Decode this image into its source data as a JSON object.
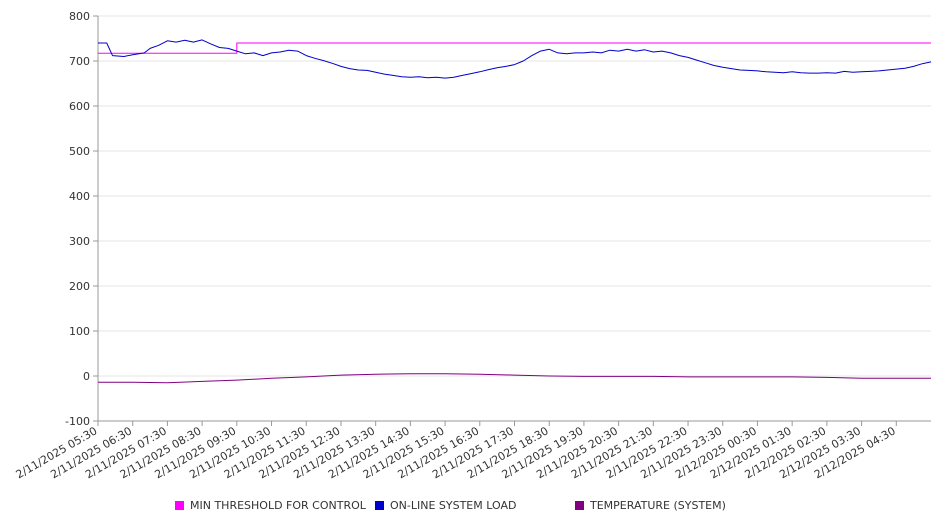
{
  "chart_data": {
    "type": "line",
    "ylim": [
      -100,
      800
    ],
    "yticks": [
      -100,
      0,
      100,
      200,
      300,
      400,
      500,
      600,
      700,
      800
    ],
    "grid": "horizontal",
    "legend_position": "bottom",
    "x_tick_labels": [
      "2/11/2025 05:30",
      "2/11/2025 06:30",
      "2/11/2025 07:30",
      "2/11/2025 08:30",
      "2/11/2025 09:30",
      "2/11/2025 10:30",
      "2/11/2025 11:30",
      "2/11/2025 12:30",
      "2/11/2025 13:30",
      "2/11/2025 14:30",
      "2/11/2025 15:30",
      "2/11/2025 16:30",
      "2/11/2025 17:30",
      "2/11/2025 18:30",
      "2/11/2025 19:30",
      "2/11/2025 20:30",
      "2/11/2025 21:30",
      "2/11/2025 22:30",
      "2/11/2025 23:30",
      "2/12/2025 00:30",
      "2/12/2025 01:30",
      "2/12/2025 02:30",
      "2/12/2025 03:30",
      "2/12/2025 04:30"
    ],
    "x_range": [
      "2/11/2025 05:30",
      "2/12/2025 05:30"
    ],
    "series": [
      {
        "name": "MIN THRESHOLD FOR CONTROL",
        "color": "#ff00ff",
        "points": [
          [
            "2/11/2025 05:30",
            717
          ],
          [
            "2/11/2025 09:30",
            717
          ],
          [
            "2/11/2025 09:30",
            740
          ],
          [
            "2/12/2025 05:30",
            740
          ]
        ]
      },
      {
        "name": "ON-LINE SYSTEM LOAD",
        "color": "#0000cc",
        "points": [
          [
            "2/11/2025 05:30",
            740
          ],
          [
            "2/11/2025 05:45",
            740
          ],
          [
            "2/11/2025 05:55",
            712
          ],
          [
            "2/11/2025 06:15",
            710
          ],
          [
            "2/11/2025 06:30",
            714
          ],
          [
            "2/11/2025 06:50",
            718
          ],
          [
            "2/11/2025 07:00",
            728
          ],
          [
            "2/11/2025 07:15",
            735
          ],
          [
            "2/11/2025 07:30",
            745
          ],
          [
            "2/11/2025 07:45",
            742
          ],
          [
            "2/11/2025 08:00",
            746
          ],
          [
            "2/11/2025 08:15",
            742
          ],
          [
            "2/11/2025 08:30",
            747
          ],
          [
            "2/11/2025 08:45",
            738
          ],
          [
            "2/11/2025 09:00",
            730
          ],
          [
            "2/11/2025 09:15",
            728
          ],
          [
            "2/11/2025 09:30",
            722
          ],
          [
            "2/11/2025 09:45",
            716
          ],
          [
            "2/11/2025 10:00",
            718
          ],
          [
            "2/11/2025 10:15",
            712
          ],
          [
            "2/11/2025 10:30",
            718
          ],
          [
            "2/11/2025 10:45",
            720
          ],
          [
            "2/11/2025 11:00",
            724
          ],
          [
            "2/11/2025 11:15",
            722
          ],
          [
            "2/11/2025 11:30",
            712
          ],
          [
            "2/11/2025 11:45",
            706
          ],
          [
            "2/11/2025 12:00",
            701
          ],
          [
            "2/11/2025 12:15",
            695
          ],
          [
            "2/11/2025 12:30",
            688
          ],
          [
            "2/11/2025 12:45",
            683
          ],
          [
            "2/11/2025 13:00",
            680
          ],
          [
            "2/11/2025 13:15",
            679
          ],
          [
            "2/11/2025 13:30",
            675
          ],
          [
            "2/11/2025 13:45",
            671
          ],
          [
            "2/11/2025 14:00",
            668
          ],
          [
            "2/11/2025 14:15",
            665
          ],
          [
            "2/11/2025 14:30",
            664
          ],
          [
            "2/11/2025 14:45",
            665
          ],
          [
            "2/11/2025 15:00",
            663
          ],
          [
            "2/11/2025 15:15",
            664
          ],
          [
            "2/11/2025 15:30",
            662
          ],
          [
            "2/11/2025 15:45",
            664
          ],
          [
            "2/11/2025 16:00",
            668
          ],
          [
            "2/11/2025 16:15",
            672
          ],
          [
            "2/11/2025 16:30",
            676
          ],
          [
            "2/11/2025 16:45",
            681
          ],
          [
            "2/11/2025 17:00",
            685
          ],
          [
            "2/11/2025 17:15",
            688
          ],
          [
            "2/11/2025 17:30",
            692
          ],
          [
            "2/11/2025 17:45",
            700
          ],
          [
            "2/11/2025 18:00",
            712
          ],
          [
            "2/11/2025 18:15",
            722
          ],
          [
            "2/11/2025 18:30",
            726
          ],
          [
            "2/11/2025 18:45",
            718
          ],
          [
            "2/11/2025 19:00",
            716
          ],
          [
            "2/11/2025 19:15",
            718
          ],
          [
            "2/11/2025 19:30",
            718
          ],
          [
            "2/11/2025 19:45",
            720
          ],
          [
            "2/11/2025 20:00",
            718
          ],
          [
            "2/11/2025 20:15",
            724
          ],
          [
            "2/11/2025 20:30",
            722
          ],
          [
            "2/11/2025 20:45",
            726
          ],
          [
            "2/11/2025 21:00",
            722
          ],
          [
            "2/11/2025 21:15",
            725
          ],
          [
            "2/11/2025 21:30",
            720
          ],
          [
            "2/11/2025 21:45",
            722
          ],
          [
            "2/11/2025 22:00",
            718
          ],
          [
            "2/11/2025 22:15",
            712
          ],
          [
            "2/11/2025 22:30",
            708
          ],
          [
            "2/11/2025 22:45",
            702
          ],
          [
            "2/11/2025 23:00",
            696
          ],
          [
            "2/11/2025 23:15",
            690
          ],
          [
            "2/11/2025 23:30",
            686
          ],
          [
            "2/11/2025 23:45",
            683
          ],
          [
            "2/12/2025 00:00",
            680
          ],
          [
            "2/12/2025 00:15",
            679
          ],
          [
            "2/12/2025 00:30",
            678
          ],
          [
            "2/12/2025 00:45",
            676
          ],
          [
            "2/12/2025 01:00",
            675
          ],
          [
            "2/12/2025 01:15",
            674
          ],
          [
            "2/12/2025 01:30",
            676
          ],
          [
            "2/12/2025 01:45",
            674
          ],
          [
            "2/12/2025 02:00",
            673
          ],
          [
            "2/12/2025 02:15",
            673
          ],
          [
            "2/12/2025 02:30",
            674
          ],
          [
            "2/12/2025 02:45",
            673
          ],
          [
            "2/12/2025 03:00",
            677
          ],
          [
            "2/12/2025 03:15",
            675
          ],
          [
            "2/12/2025 03:30",
            676
          ],
          [
            "2/12/2025 03:45",
            677
          ],
          [
            "2/12/2025 04:00",
            678
          ],
          [
            "2/12/2025 04:15",
            680
          ],
          [
            "2/12/2025 04:30",
            682
          ],
          [
            "2/12/2025 04:45",
            684
          ],
          [
            "2/12/2025 05:00",
            688
          ],
          [
            "2/12/2025 05:15",
            694
          ],
          [
            "2/12/2025 05:30",
            698
          ]
        ]
      },
      {
        "name": "TEMPERATURE (SYSTEM)",
        "color": "#800080",
        "points": [
          [
            "2/11/2025 05:30",
            -14
          ],
          [
            "2/11/2025 06:30",
            -14
          ],
          [
            "2/11/2025 07:30",
            -15
          ],
          [
            "2/11/2025 08:30",
            -12
          ],
          [
            "2/11/2025 09:30",
            -9
          ],
          [
            "2/11/2025 10:30",
            -5
          ],
          [
            "2/11/2025 11:30",
            -2
          ],
          [
            "2/11/2025 12:30",
            2
          ],
          [
            "2/11/2025 13:30",
            4
          ],
          [
            "2/11/2025 14:30",
            5
          ],
          [
            "2/11/2025 15:30",
            5
          ],
          [
            "2/11/2025 16:30",
            4
          ],
          [
            "2/11/2025 17:30",
            2
          ],
          [
            "2/11/2025 18:30",
            0
          ],
          [
            "2/11/2025 19:30",
            -1
          ],
          [
            "2/11/2025 20:30",
            -1
          ],
          [
            "2/11/2025 21:30",
            -1
          ],
          [
            "2/11/2025 22:30",
            -2
          ],
          [
            "2/11/2025 23:30",
            -2
          ],
          [
            "2/12/2025 00:30",
            -2
          ],
          [
            "2/12/2025 01:30",
            -2
          ],
          [
            "2/12/2025 02:30",
            -3
          ],
          [
            "2/12/2025 03:30",
            -5
          ],
          [
            "2/12/2025 04:30",
            -5
          ],
          [
            "2/12/2025 05:30",
            -5
          ]
        ]
      }
    ]
  }
}
